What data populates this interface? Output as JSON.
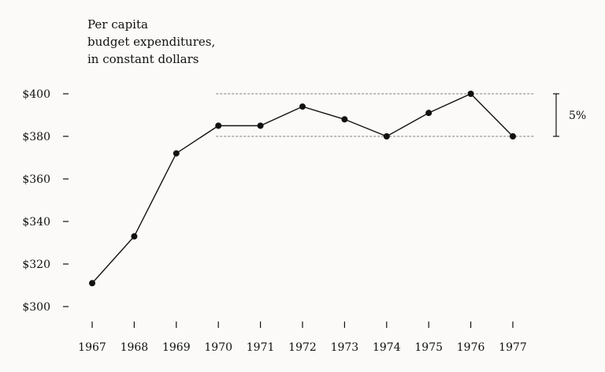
{
  "chart_data": {
    "type": "line",
    "title": [
      "Per capita",
      "budget expenditures,",
      "in constant dollars"
    ],
    "x": [
      1967,
      1968,
      1969,
      1970,
      1971,
      1972,
      1973,
      1974,
      1975,
      1976,
      1977
    ],
    "x_tick_labels": [
      "1967",
      "1968",
      "1969",
      "1970",
      "1971",
      "1972",
      "1973",
      "1974",
      "1975",
      "1976",
      "1977"
    ],
    "series": [
      {
        "values": [
          311,
          333,
          372,
          385,
          385,
          394,
          388,
          380,
          391,
          400,
          380
        ]
      }
    ],
    "ylim": [
      300,
      400
    ],
    "y_ticks": [
      300,
      320,
      340,
      360,
      380,
      400
    ],
    "y_tick_labels": [
      "$300",
      "$320",
      "$340",
      "$360",
      "$380",
      "$400"
    ],
    "reference_lines": [
      400,
      380
    ],
    "reference_range": {
      "from_x": 1970,
      "to_x": 1977
    },
    "annotation": {
      "text": "5%",
      "from": 380,
      "to": 400
    },
    "grid": false
  }
}
